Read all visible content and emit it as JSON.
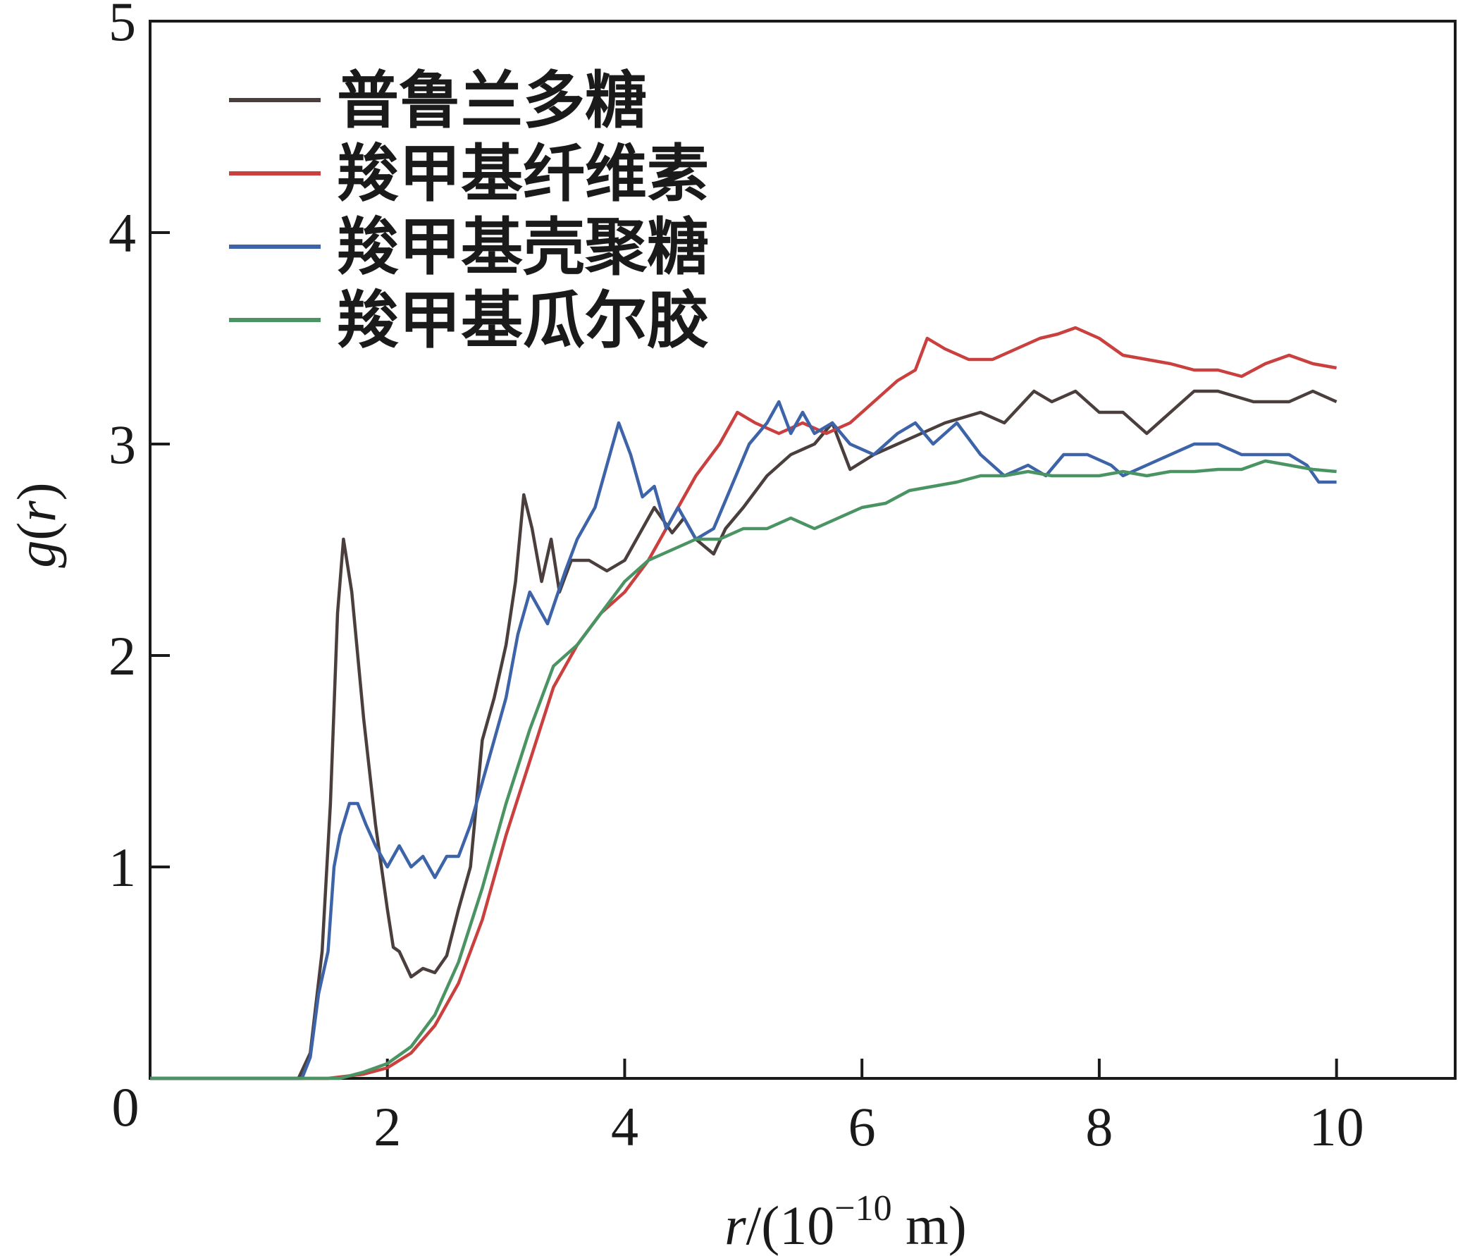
{
  "chart_data": {
    "type": "line",
    "xlabel_parts": {
      "var": "r",
      "mid": "/(10",
      "exp": "−10",
      "unit": " m)"
    },
    "ylabel_parts": {
      "func": "g",
      "open": "(",
      "var": "r",
      "close": ")"
    },
    "xlim": [
      0,
      11
    ],
    "ylim": [
      0,
      5
    ],
    "xticks": [
      2,
      4,
      6,
      8,
      10
    ],
    "yticks": [
      1,
      2,
      3,
      4,
      5
    ],
    "origin_label": "0",
    "grid": false,
    "legend_position": "top-left",
    "series": [
      {
        "name": "普鲁兰多糖",
        "color": "#4a3f3c",
        "points": [
          [
            0,
            0
          ],
          [
            1.25,
            0
          ],
          [
            1.35,
            0.12
          ],
          [
            1.45,
            0.6
          ],
          [
            1.52,
            1.3
          ],
          [
            1.58,
            2.2
          ],
          [
            1.63,
            2.55
          ],
          [
            1.7,
            2.3
          ],
          [
            1.8,
            1.7
          ],
          [
            1.9,
            1.2
          ],
          [
            2.0,
            0.8
          ],
          [
            2.05,
            0.62
          ],
          [
            2.1,
            0.6
          ],
          [
            2.2,
            0.48
          ],
          [
            2.3,
            0.52
          ],
          [
            2.4,
            0.5
          ],
          [
            2.5,
            0.58
          ],
          [
            2.6,
            0.8
          ],
          [
            2.7,
            1.0
          ],
          [
            2.8,
            1.6
          ],
          [
            2.9,
            1.8
          ],
          [
            3.0,
            2.05
          ],
          [
            3.08,
            2.35
          ],
          [
            3.15,
            2.76
          ],
          [
            3.22,
            2.6
          ],
          [
            3.3,
            2.35
          ],
          [
            3.38,
            2.55
          ],
          [
            3.45,
            2.3
          ],
          [
            3.55,
            2.45
          ],
          [
            3.7,
            2.45
          ],
          [
            3.85,
            2.4
          ],
          [
            4.0,
            2.45
          ],
          [
            4.1,
            2.55
          ],
          [
            4.25,
            2.7
          ],
          [
            4.4,
            2.58
          ],
          [
            4.5,
            2.65
          ],
          [
            4.6,
            2.55
          ],
          [
            4.75,
            2.48
          ],
          [
            4.85,
            2.6
          ],
          [
            5.0,
            2.7
          ],
          [
            5.2,
            2.85
          ],
          [
            5.4,
            2.95
          ],
          [
            5.6,
            3.0
          ],
          [
            5.75,
            3.1
          ],
          [
            5.9,
            2.88
          ],
          [
            6.1,
            2.95
          ],
          [
            6.3,
            3.0
          ],
          [
            6.5,
            3.05
          ],
          [
            6.7,
            3.1
          ],
          [
            7.0,
            3.15
          ],
          [
            7.2,
            3.1
          ],
          [
            7.45,
            3.25
          ],
          [
            7.6,
            3.2
          ],
          [
            7.8,
            3.25
          ],
          [
            8.0,
            3.15
          ],
          [
            8.2,
            3.15
          ],
          [
            8.4,
            3.05
          ],
          [
            8.6,
            3.15
          ],
          [
            8.8,
            3.25
          ],
          [
            9.0,
            3.25
          ],
          [
            9.3,
            3.2
          ],
          [
            9.6,
            3.2
          ],
          [
            9.8,
            3.25
          ],
          [
            10.0,
            3.2
          ]
        ]
      },
      {
        "name": "羧甲基纤维素",
        "color": "#c9403f",
        "points": [
          [
            0,
            0
          ],
          [
            1.5,
            0
          ],
          [
            1.8,
            0.02
          ],
          [
            2.0,
            0.05
          ],
          [
            2.2,
            0.12
          ],
          [
            2.4,
            0.25
          ],
          [
            2.6,
            0.45
          ],
          [
            2.8,
            0.75
          ],
          [
            3.0,
            1.15
          ],
          [
            3.2,
            1.5
          ],
          [
            3.4,
            1.85
          ],
          [
            3.6,
            2.05
          ],
          [
            3.8,
            2.2
          ],
          [
            4.0,
            2.3
          ],
          [
            4.2,
            2.45
          ],
          [
            4.4,
            2.65
          ],
          [
            4.6,
            2.85
          ],
          [
            4.8,
            3.0
          ],
          [
            4.95,
            3.15
          ],
          [
            5.1,
            3.1
          ],
          [
            5.3,
            3.05
          ],
          [
            5.5,
            3.1
          ],
          [
            5.7,
            3.05
          ],
          [
            5.9,
            3.1
          ],
          [
            6.1,
            3.2
          ],
          [
            6.3,
            3.3
          ],
          [
            6.45,
            3.35
          ],
          [
            6.55,
            3.5
          ],
          [
            6.7,
            3.45
          ],
          [
            6.9,
            3.4
          ],
          [
            7.1,
            3.4
          ],
          [
            7.3,
            3.45
          ],
          [
            7.5,
            3.5
          ],
          [
            7.65,
            3.52
          ],
          [
            7.8,
            3.55
          ],
          [
            8.0,
            3.5
          ],
          [
            8.2,
            3.42
          ],
          [
            8.4,
            3.4
          ],
          [
            8.6,
            3.38
          ],
          [
            8.8,
            3.35
          ],
          [
            9.0,
            3.35
          ],
          [
            9.2,
            3.32
          ],
          [
            9.4,
            3.38
          ],
          [
            9.6,
            3.42
          ],
          [
            9.8,
            3.38
          ],
          [
            10.0,
            3.36
          ]
        ]
      },
      {
        "name": "羧甲基壳聚糖",
        "color": "#3d63a8",
        "points": [
          [
            0,
            0
          ],
          [
            1.28,
            0
          ],
          [
            1.35,
            0.1
          ],
          [
            1.42,
            0.4
          ],
          [
            1.5,
            0.6
          ],
          [
            1.55,
            1.0
          ],
          [
            1.6,
            1.15
          ],
          [
            1.68,
            1.3
          ],
          [
            1.75,
            1.3
          ],
          [
            1.82,
            1.2
          ],
          [
            1.9,
            1.1
          ],
          [
            2.0,
            1.0
          ],
          [
            2.1,
            1.1
          ],
          [
            2.2,
            1.0
          ],
          [
            2.3,
            1.05
          ],
          [
            2.4,
            0.95
          ],
          [
            2.5,
            1.05
          ],
          [
            2.6,
            1.05
          ],
          [
            2.7,
            1.2
          ],
          [
            2.8,
            1.4
          ],
          [
            2.9,
            1.6
          ],
          [
            3.0,
            1.8
          ],
          [
            3.1,
            2.1
          ],
          [
            3.2,
            2.3
          ],
          [
            3.35,
            2.15
          ],
          [
            3.5,
            2.4
          ],
          [
            3.6,
            2.55
          ],
          [
            3.75,
            2.7
          ],
          [
            3.85,
            2.9
          ],
          [
            3.95,
            3.1
          ],
          [
            4.05,
            2.95
          ],
          [
            4.15,
            2.75
          ],
          [
            4.25,
            2.8
          ],
          [
            4.35,
            2.6
          ],
          [
            4.45,
            2.7
          ],
          [
            4.6,
            2.55
          ],
          [
            4.75,
            2.6
          ],
          [
            4.9,
            2.8
          ],
          [
            5.05,
            3.0
          ],
          [
            5.2,
            3.1
          ],
          [
            5.3,
            3.2
          ],
          [
            5.4,
            3.05
          ],
          [
            5.5,
            3.15
          ],
          [
            5.6,
            3.05
          ],
          [
            5.75,
            3.1
          ],
          [
            5.9,
            3.0
          ],
          [
            6.1,
            2.95
          ],
          [
            6.3,
            3.05
          ],
          [
            6.45,
            3.1
          ],
          [
            6.6,
            3.0
          ],
          [
            6.8,
            3.1
          ],
          [
            7.0,
            2.95
          ],
          [
            7.2,
            2.85
          ],
          [
            7.4,
            2.9
          ],
          [
            7.55,
            2.85
          ],
          [
            7.7,
            2.95
          ],
          [
            7.9,
            2.95
          ],
          [
            8.1,
            2.9
          ],
          [
            8.2,
            2.85
          ],
          [
            8.4,
            2.9
          ],
          [
            8.6,
            2.95
          ],
          [
            8.8,
            3.0
          ],
          [
            9.0,
            3.0
          ],
          [
            9.2,
            2.95
          ],
          [
            9.4,
            2.95
          ],
          [
            9.6,
            2.95
          ],
          [
            9.75,
            2.9
          ],
          [
            9.85,
            2.82
          ],
          [
            10.0,
            2.82
          ]
        ]
      },
      {
        "name": "羧甲基瓜尔胶",
        "color": "#4a9463",
        "points": [
          [
            0,
            0
          ],
          [
            1.6,
            0
          ],
          [
            1.8,
            0.03
          ],
          [
            2.0,
            0.07
          ],
          [
            2.2,
            0.15
          ],
          [
            2.4,
            0.3
          ],
          [
            2.6,
            0.55
          ],
          [
            2.8,
            0.9
          ],
          [
            3.0,
            1.3
          ],
          [
            3.2,
            1.65
          ],
          [
            3.4,
            1.95
          ],
          [
            3.6,
            2.05
          ],
          [
            3.8,
            2.2
          ],
          [
            4.0,
            2.35
          ],
          [
            4.2,
            2.45
          ],
          [
            4.4,
            2.5
          ],
          [
            4.6,
            2.55
          ],
          [
            4.8,
            2.55
          ],
          [
            5.0,
            2.6
          ],
          [
            5.2,
            2.6
          ],
          [
            5.4,
            2.65
          ],
          [
            5.6,
            2.6
          ],
          [
            5.8,
            2.65
          ],
          [
            6.0,
            2.7
          ],
          [
            6.2,
            2.72
          ],
          [
            6.4,
            2.78
          ],
          [
            6.6,
            2.8
          ],
          [
            6.8,
            2.82
          ],
          [
            7.0,
            2.85
          ],
          [
            7.2,
            2.85
          ],
          [
            7.4,
            2.87
          ],
          [
            7.6,
            2.85
          ],
          [
            7.8,
            2.85
          ],
          [
            8.0,
            2.85
          ],
          [
            8.2,
            2.87
          ],
          [
            8.4,
            2.85
          ],
          [
            8.6,
            2.87
          ],
          [
            8.8,
            2.87
          ],
          [
            9.0,
            2.88
          ],
          [
            9.2,
            2.88
          ],
          [
            9.4,
            2.92
          ],
          [
            9.6,
            2.9
          ],
          [
            9.8,
            2.88
          ],
          [
            10.0,
            2.87
          ]
        ]
      }
    ]
  }
}
